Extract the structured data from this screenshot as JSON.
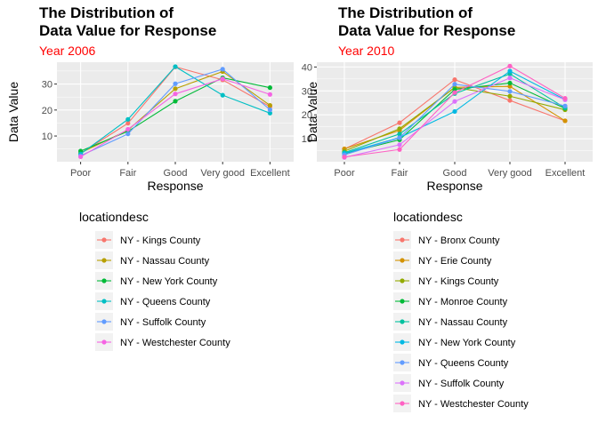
{
  "chart_data": [
    {
      "type": "line",
      "title": "The Distribution of\nData Value for Response",
      "subtitle": "Year 2006",
      "subtitle_color": "#FF0000",
      "xlabel": "Response",
      "ylabel": "Data Value",
      "categories": [
        "Poor",
        "Fair",
        "Good",
        "Very good",
        "Excellent"
      ],
      "y_ticks": [
        10,
        20,
        30
      ],
      "ylim": [
        0.1,
        38.4
      ],
      "legend_title": "locationdesc",
      "legend_position": "bottom",
      "grid": true,
      "series": [
        {
          "name": "NY - Kings County",
          "color": "#F8766D",
          "values": [
            3.3,
            14.9,
            36.6,
            31.6,
            21.3
          ]
        },
        {
          "name": "NY - Nassau County",
          "color": "#B79F00",
          "values": [
            3.5,
            12.3,
            28.2,
            34.8,
            21.8
          ]
        },
        {
          "name": "NY - New York County",
          "color": "#00BA38",
          "values": [
            4.2,
            11.8,
            23.4,
            32.4,
            28.6
          ]
        },
        {
          "name": "NY - Queens County",
          "color": "#00BFC4",
          "values": [
            3.1,
            16.4,
            36.7,
            25.7,
            18.8
          ]
        },
        {
          "name": "NY - Suffolk County",
          "color": "#619CFF",
          "values": [
            2.4,
            10.8,
            30.1,
            35.7,
            20.1
          ]
        },
        {
          "name": "NY - Westchester County",
          "color": "#F564E3",
          "values": [
            2.0,
            12.6,
            26.2,
            32.0,
            26.0
          ]
        }
      ]
    },
    {
      "type": "line",
      "title": "The Distribution of\nData Value for Response",
      "subtitle": "Year 2010",
      "subtitle_color": "#FF0000",
      "xlabel": "Response",
      "ylabel": "Data Value",
      "categories": [
        "Poor",
        "Fair",
        "Good",
        "Very good",
        "Excellent"
      ],
      "y_ticks": [
        10,
        20,
        30,
        40
      ],
      "ylim": [
        0.4,
        42.0
      ],
      "legend_title": "locationdesc",
      "legend_position": "bottom",
      "grid": true,
      "series": [
        {
          "name": "NY - Bronx County",
          "color": "#F8766D",
          "values": [
            5.7,
            16.7,
            34.7,
            26.0,
            17.5
          ]
        },
        {
          "name": "NY - Erie County",
          "color": "#D39200",
          "values": [
            5.8,
            13.5,
            31.5,
            31.9,
            17.5
          ]
        },
        {
          "name": "NY - Kings County",
          "color": "#93AA00",
          "values": [
            4.8,
            14.2,
            31.4,
            27.8,
            22.1
          ]
        },
        {
          "name": "NY - Monroe County",
          "color": "#00BA38",
          "values": [
            3.8,
            9.6,
            30.6,
            33.3,
            22.7
          ]
        },
        {
          "name": "NY - Nassau County",
          "color": "#00C19F",
          "values": [
            4.2,
            12.0,
            28.9,
            37.1,
            22.9
          ]
        },
        {
          "name": "NY - New York County",
          "color": "#00B9E3",
          "values": [
            3.9,
            10.5,
            21.4,
            38.3,
            26.4
          ]
        },
        {
          "name": "NY - Queens County",
          "color": "#619CFF",
          "values": [
            3.3,
            10.4,
            32.8,
            29.8,
            23.7
          ]
        },
        {
          "name": "NY - Suffolk County",
          "color": "#DB72FB",
          "values": [
            2.2,
            7.5,
            25.6,
            35.4,
            26.3
          ]
        },
        {
          "name": "NY - Westchester County",
          "color": "#FF61C3",
          "values": [
            2.4,
            5.5,
            29.3,
            40.4,
            26.9
          ]
        }
      ]
    }
  ]
}
